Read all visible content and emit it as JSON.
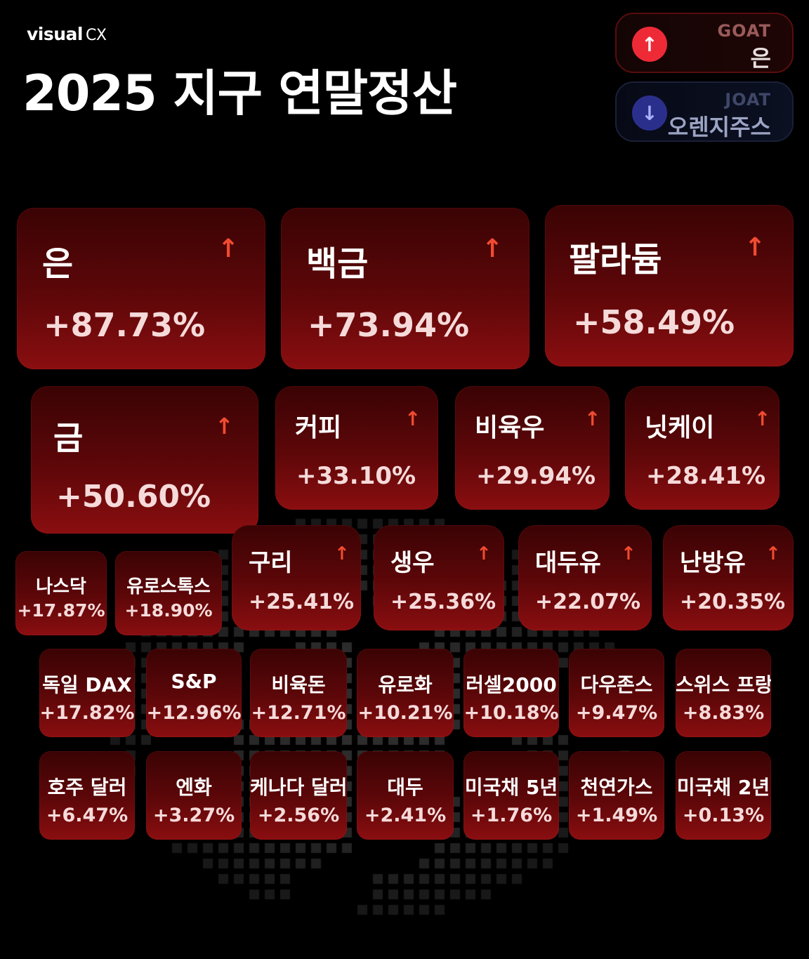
{
  "header": {
    "brand_main": "visual",
    "brand_suffix": "CX",
    "title": "2025 지구 연말정산"
  },
  "goat": {
    "title": "GOAT",
    "value": "은",
    "icon": "arrow-up-icon",
    "color": "#ef2a37"
  },
  "joat": {
    "title": "JOAT",
    "value": "오렌지주스",
    "icon": "arrow-down-icon",
    "color": "#2b2f8c"
  },
  "colors": {
    "tile_dark": "#3a0304",
    "tile_bright": "#8a0e10",
    "arrow": "#f04b30"
  },
  "tiles": [
    {
      "label": "은",
      "pct": "+87.73%",
      "arrow": true
    },
    {
      "label": "백금",
      "pct": "+73.94%",
      "arrow": true
    },
    {
      "label": "팔라듐",
      "pct": "+58.49%",
      "arrow": true
    },
    {
      "label": "금",
      "pct": "+50.60%",
      "arrow": true
    },
    {
      "label": "커피",
      "pct": "+33.10%",
      "arrow": true
    },
    {
      "label": "비육우",
      "pct": "+29.94%",
      "arrow": true
    },
    {
      "label": "닛케이",
      "pct": "+28.41%",
      "arrow": true
    },
    {
      "label": "나스닥",
      "pct": "+17.87%",
      "arrow": false
    },
    {
      "label": "유로스톡스",
      "pct": "+18.90%",
      "arrow": false
    },
    {
      "label": "구리",
      "pct": "+25.41%",
      "arrow": true
    },
    {
      "label": "생우",
      "pct": "+25.36%",
      "arrow": true
    },
    {
      "label": "대두유",
      "pct": "+22.07%",
      "arrow": true
    },
    {
      "label": "난방유",
      "pct": "+20.35%",
      "arrow": true
    },
    {
      "label": "독일 DAX",
      "pct": "+17.82%",
      "arrow": false
    },
    {
      "label": "S&P",
      "pct": "+12.96%",
      "arrow": false
    },
    {
      "label": "비육돈",
      "pct": "+12.71%",
      "arrow": false
    },
    {
      "label": "유로화",
      "pct": "+10.21%",
      "arrow": false
    },
    {
      "label": "러셀2000",
      "pct": "+10.18%",
      "arrow": false
    },
    {
      "label": "다우존스",
      "pct": "+9.47%",
      "arrow": false
    },
    {
      "label": "스위스 프랑",
      "pct": "+8.83%",
      "arrow": false
    },
    {
      "label": "호주 달러",
      "pct": "+6.47%",
      "arrow": false
    },
    {
      "label": "엔화",
      "pct": "+3.27%",
      "arrow": false
    },
    {
      "label": "케나다 달러",
      "pct": "+2.56%",
      "arrow": false
    },
    {
      "label": "대두",
      "pct": "+2.41%",
      "arrow": false
    },
    {
      "label": "미국채 5년",
      "pct": "+1.76%",
      "arrow": false
    },
    {
      "label": "천연가스",
      "pct": "+1.49%",
      "arrow": false
    },
    {
      "label": "미국채 2년",
      "pct": "+0.13%",
      "arrow": false
    }
  ]
}
